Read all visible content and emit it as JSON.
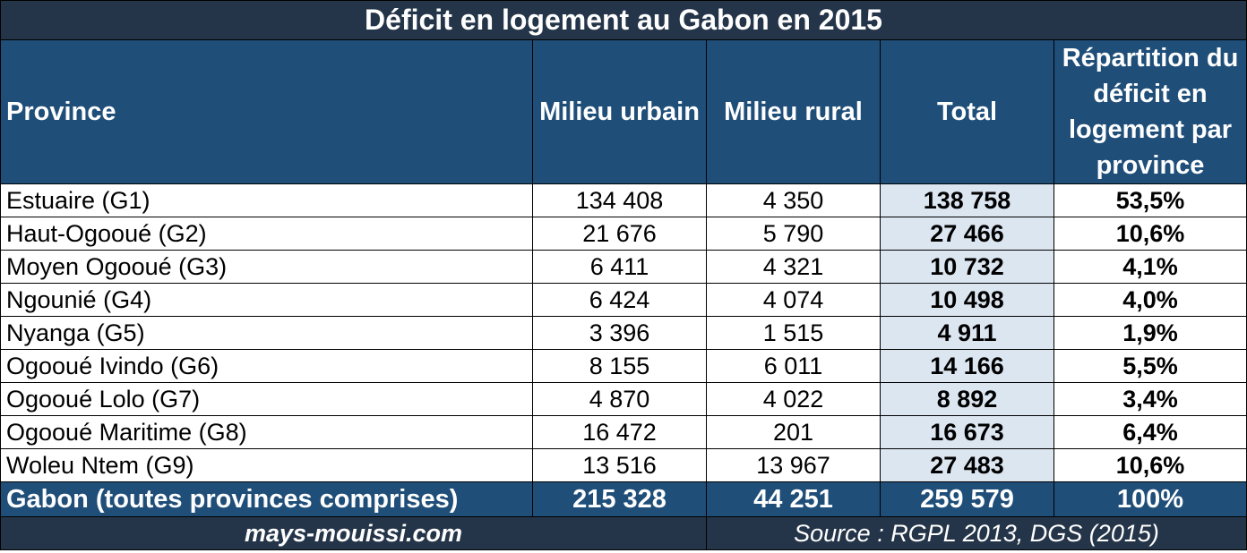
{
  "title": "Déficit en logement au Gabon en 2015",
  "headers": {
    "province": "Province",
    "urbain": "Milieu urbain",
    "rural": "Milieu rural",
    "total": "Total",
    "repartition": "Répartition du déficit en logement par province"
  },
  "rows": [
    {
      "province": "Estuaire (G1)",
      "urbain": "134 408",
      "rural": "4 350",
      "total": "138 758",
      "pct": "53,5%"
    },
    {
      "province": "Haut-Ogooué (G2)",
      "urbain": "21 676",
      "rural": "5 790",
      "total": "27 466",
      "pct": "10,6%"
    },
    {
      "province": "Moyen Ogooué (G3)",
      "urbain": "6 411",
      "rural": "4 321",
      "total": "10 732",
      "pct": "4,1%"
    },
    {
      "province": "Ngounié (G4)",
      "urbain": "6 424",
      "rural": "4 074",
      "total": "10 498",
      "pct": "4,0%"
    },
    {
      "province": "Nyanga (G5)",
      "urbain": "3 396",
      "rural": "1 515",
      "total": "4 911",
      "pct": "1,9%"
    },
    {
      "province": "Ogooué Ivindo (G6)",
      "urbain": "8 155",
      "rural": "6 011",
      "total": "14 166",
      "pct": "5,5%"
    },
    {
      "province": "Ogooué Lolo (G7)",
      "urbain": "4 870",
      "rural": "4 022",
      "total": "8 892",
      "pct": "3,4%"
    },
    {
      "province": "Ogooué Maritime (G8)",
      "urbain": "16 472",
      "rural": "201",
      "total": "16 673",
      "pct": "6,4%"
    },
    {
      "province": "Woleu Ntem (G9)",
      "urbain": "13 516",
      "rural": "13 967",
      "total": "27 483",
      "pct": "10,6%"
    }
  ],
  "summary": {
    "province": "Gabon (toutes provinces comprises)",
    "urbain": "215 328",
    "rural": "44 251",
    "total": "259 579",
    "pct": "100%"
  },
  "footer": {
    "site": "mays-mouissi.com",
    "source": "Source : RGPL 2013, DGS (2015)"
  },
  "colors": {
    "title_bg": "#253549",
    "header_bg": "#1f4e79",
    "total_col_bg": "#dce6f1"
  }
}
